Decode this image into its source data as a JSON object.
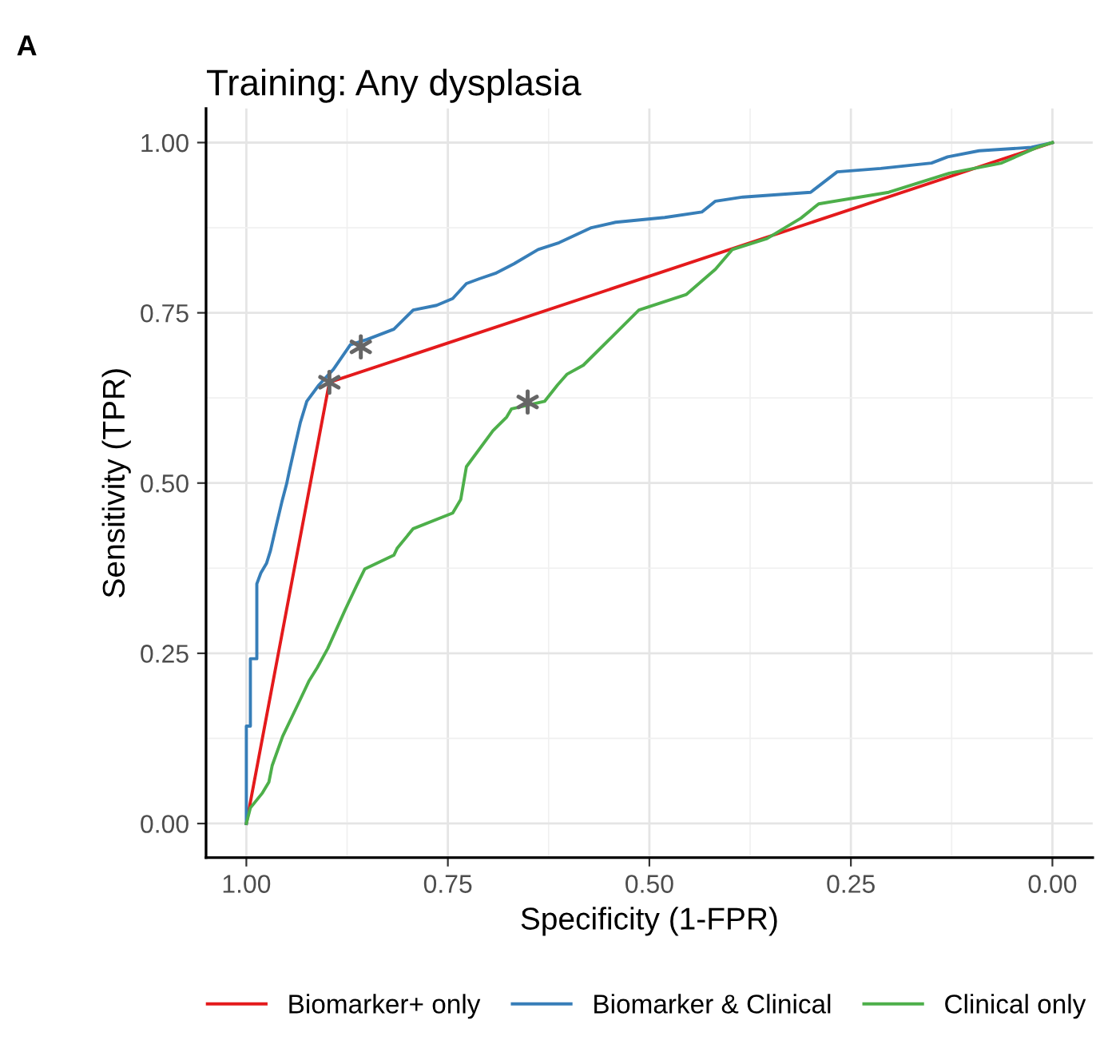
{
  "chart_data": {
    "type": "line",
    "title": "Training: Any dysplasia",
    "xlabel": "Specificity (1-FPR)",
    "ylabel": "Sensitivity (TPR)",
    "annotations": [
      "A"
    ],
    "xlim": [
      1.05,
      -0.05
    ],
    "ylim": [
      -0.05,
      1.05
    ],
    "xticks": [
      {
        "value": 1.0,
        "label": "1.00"
      },
      {
        "value": 0.75,
        "label": "0.75"
      },
      {
        "value": 0.5,
        "label": "0.50"
      },
      {
        "value": 0.25,
        "label": "0.25"
      },
      {
        "value": 0.0,
        "label": "0.00"
      }
    ],
    "yticks": [
      {
        "value": 0.0,
        "label": "0.00"
      },
      {
        "value": 0.25,
        "label": "0.25"
      },
      {
        "value": 0.5,
        "label": "0.50"
      },
      {
        "value": 0.75,
        "label": "0.75"
      },
      {
        "value": 1.0,
        "label": "1.00"
      }
    ],
    "grid": true,
    "legend": "bottom",
    "marker": "none",
    "line_style": "solid",
    "series": [
      {
        "name": "Biomarker+ only",
        "color": "#e41a1c",
        "x": [
          1.0,
          0.897,
          0.0
        ],
        "values": [
          0.0,
          0.648,
          1.0
        ]
      },
      {
        "name": "Biomarker & Clinical",
        "color": "#377eb8",
        "x": [
          1.0,
          1.0,
          0.995,
          0.995,
          0.987,
          0.987,
          0.982,
          0.975,
          0.97,
          0.963,
          0.956,
          0.95,
          0.947,
          0.939,
          0.933,
          0.925,
          0.91,
          0.892,
          0.871,
          0.85,
          0.817,
          0.793,
          0.764,
          0.744,
          0.727,
          0.711,
          0.691,
          0.668,
          0.638,
          0.612,
          0.572,
          0.542,
          0.481,
          0.435,
          0.418,
          0.384,
          0.3,
          0.267,
          0.213,
          0.15,
          0.13,
          0.091,
          0.026,
          0.0
        ],
        "values": [
          0.0,
          0.143,
          0.143,
          0.242,
          0.242,
          0.352,
          0.368,
          0.382,
          0.401,
          0.437,
          0.472,
          0.499,
          0.516,
          0.558,
          0.589,
          0.62,
          0.644,
          0.667,
          0.703,
          0.711,
          0.726,
          0.754,
          0.761,
          0.771,
          0.793,
          0.8,
          0.808,
          0.822,
          0.843,
          0.853,
          0.875,
          0.883,
          0.89,
          0.898,
          0.914,
          0.92,
          0.927,
          0.957,
          0.962,
          0.97,
          0.979,
          0.988,
          0.993,
          1.0
        ]
      },
      {
        "name": "Clinical only",
        "color": "#4daf4a",
        "x": [
          1.0,
          0.995,
          0.98,
          0.972,
          0.968,
          0.955,
          0.934,
          0.922,
          0.912,
          0.899,
          0.877,
          0.863,
          0.853,
          0.817,
          0.813,
          0.793,
          0.744,
          0.734,
          0.727,
          0.694,
          0.677,
          0.671,
          0.63,
          0.614,
          0.602,
          0.582,
          0.513,
          0.454,
          0.418,
          0.397,
          0.354,
          0.312,
          0.29,
          0.203,
          0.128,
          0.063,
          0.019,
          0.0
        ],
        "values": [
          0.0,
          0.023,
          0.045,
          0.061,
          0.085,
          0.128,
          0.18,
          0.21,
          0.229,
          0.257,
          0.315,
          0.35,
          0.374,
          0.394,
          0.404,
          0.433,
          0.456,
          0.476,
          0.524,
          0.577,
          0.597,
          0.609,
          0.62,
          0.644,
          0.66,
          0.673,
          0.754,
          0.777,
          0.814,
          0.843,
          0.859,
          0.889,
          0.91,
          0.927,
          0.955,
          0.97,
          0.993,
          1.0
        ]
      },
      {
        "type": "scatter",
        "color": "#666666",
        "marker": "cross",
        "x": [
          0.897,
          0.858,
          0.651
        ],
        "values": [
          0.648,
          0.7,
          0.619
        ]
      }
    ]
  }
}
